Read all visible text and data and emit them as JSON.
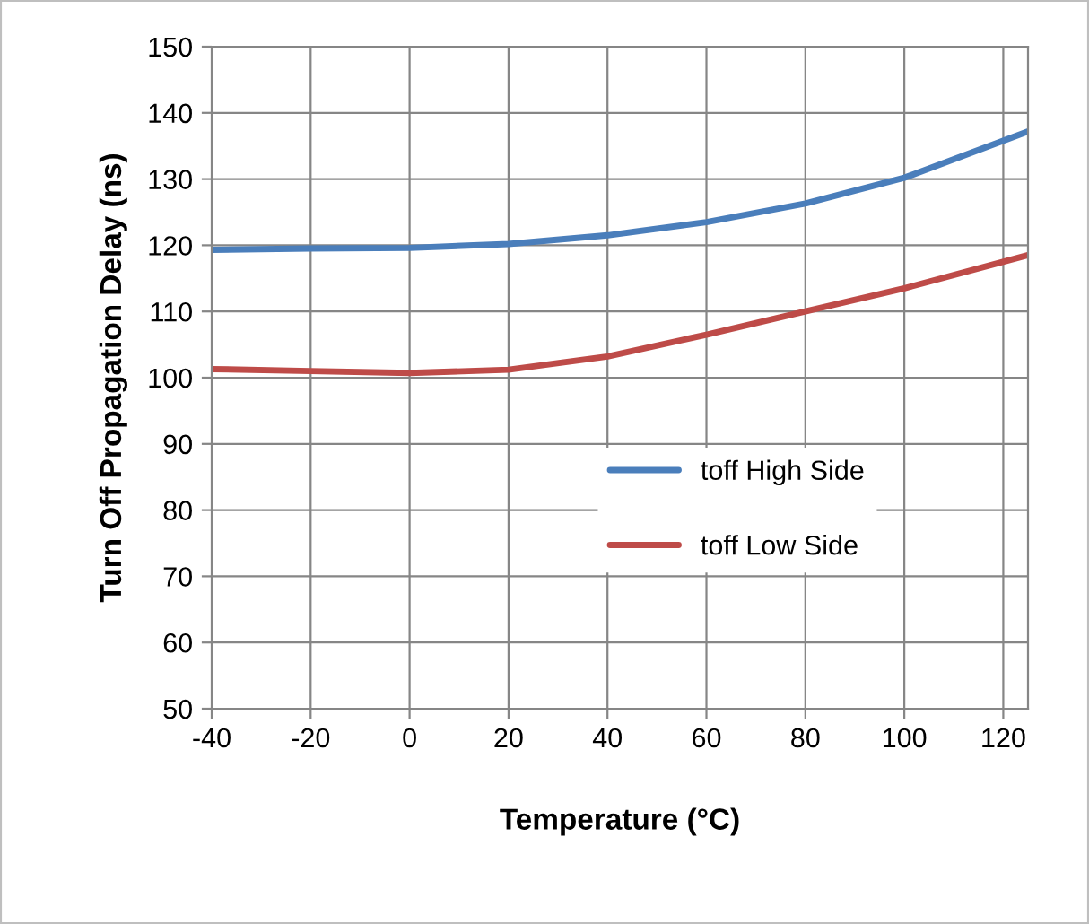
{
  "chart_data": {
    "type": "line",
    "xlabel": "Temperature (°C)",
    "ylabel": "Turn Off Propagation Delay (ns)",
    "xlim": [
      -40,
      125
    ],
    "xticks": [
      -40,
      -20,
      0,
      20,
      40,
      60,
      80,
      100,
      120
    ],
    "ylim": [
      50,
      150
    ],
    "yticks": [
      50,
      60,
      70,
      80,
      90,
      100,
      110,
      120,
      130,
      140,
      150
    ],
    "grid": true,
    "legend": "right",
    "marker": "none",
    "line_style": "solid",
    "series": [
      {
        "name": "toff High Side",
        "color": "#4a7ebb",
        "x": [
          -40,
          -20,
          0,
          20,
          40,
          60,
          80,
          100,
          125
        ],
        "values": [
          119.3,
          119.5,
          119.6,
          120.2,
          121.5,
          123.5,
          126.3,
          130.2,
          137.2
        ]
      },
      {
        "name": "toff Low Side",
        "color": "#be4b48",
        "x": [
          -40,
          -20,
          0,
          20,
          40,
          60,
          80,
          100,
          125
        ],
        "values": [
          101.3,
          101,
          100.7,
          101.2,
          103.2,
          106.5,
          110,
          113.5,
          118.5
        ]
      }
    ]
  }
}
